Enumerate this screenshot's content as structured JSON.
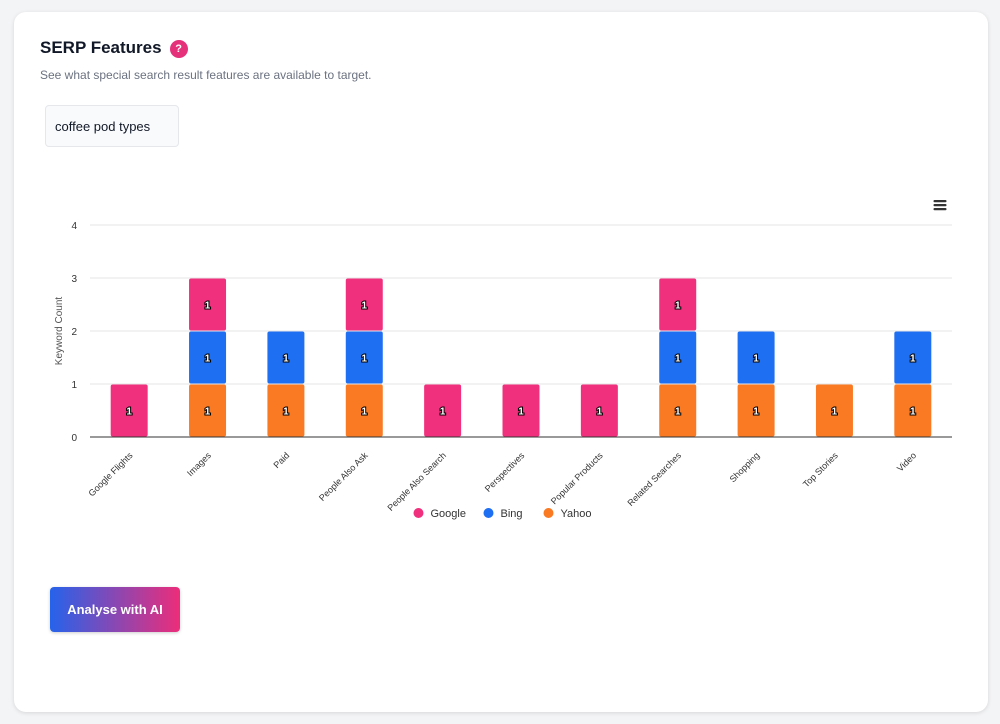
{
  "header": {
    "title": "SERP Features",
    "help_glyph": "?",
    "subtitle": "See what special search result features are available to target."
  },
  "keyword": "coffee pod types",
  "colors": {
    "Google": "#f0307c",
    "Bing": "#1f6ff2",
    "Yahoo": "#fa7a23"
  },
  "chart_data": {
    "type": "bar",
    "stacked": true,
    "title": "",
    "xlabel": "",
    "ylabel": "Keyword Count",
    "ylim": [
      0,
      4
    ],
    "yticks": [
      0,
      1,
      2,
      3,
      4
    ],
    "categories": [
      "Google Flights",
      "Images",
      "Paid",
      "People Also Ask",
      "People Also Search",
      "Perspectives",
      "Popular Products",
      "Related Searches",
      "Shopping",
      "Top Stories",
      "Video"
    ],
    "series": [
      {
        "name": "Yahoo",
        "values": [
          0,
          1,
          1,
          1,
          0,
          0,
          0,
          1,
          1,
          1,
          1
        ]
      },
      {
        "name": "Bing",
        "values": [
          0,
          1,
          1,
          1,
          0,
          0,
          0,
          1,
          1,
          0,
          1
        ]
      },
      {
        "name": "Google",
        "values": [
          1,
          1,
          0,
          1,
          1,
          1,
          1,
          1,
          0,
          0,
          0
        ]
      }
    ],
    "legend": [
      "Google",
      "Bing",
      "Yahoo"
    ],
    "legend_position": "bottom-center"
  },
  "actions": {
    "analyse_label": "Analyse with AI"
  }
}
